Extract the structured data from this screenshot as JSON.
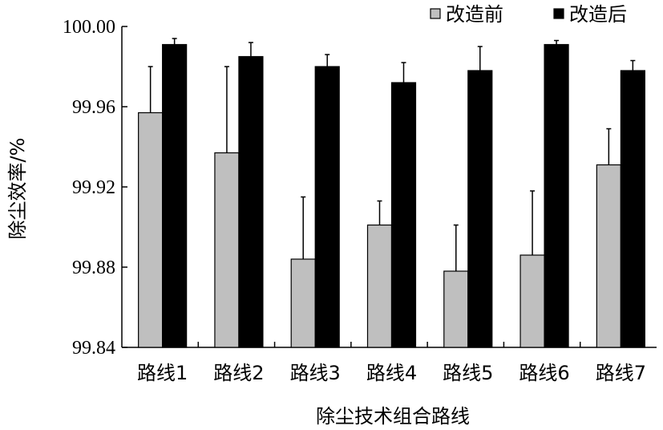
{
  "chart_data": {
    "type": "bar",
    "title": "",
    "xlabel": "除尘技术组合路线",
    "ylabel": "除尘效率/%",
    "ylim": [
      99.84,
      100.0
    ],
    "yticks": [
      "99.84",
      "99.88",
      "99.92",
      "99.96",
      "100.00"
    ],
    "yticks_values": [
      99.84,
      99.88,
      99.92,
      99.96,
      100.0
    ],
    "categories": [
      "路线1",
      "路线2",
      "路线3",
      "路线4",
      "路线5",
      "路线6",
      "路线7"
    ],
    "legend_position": "top-right",
    "grid": false,
    "series": [
      {
        "name": "改造前",
        "color": "#bfbfbf",
        "values": [
          99.957,
          99.937,
          99.884,
          99.901,
          99.878,
          99.886,
          99.931
        ],
        "error": [
          0.023,
          0.043,
          0.031,
          0.012,
          0.023,
          0.032,
          0.018
        ]
      },
      {
        "name": "改造后",
        "color": "#000000",
        "values": [
          99.991,
          99.985,
          99.98,
          99.972,
          99.978,
          99.991,
          99.978
        ],
        "error": [
          0.003,
          0.007,
          0.006,
          0.01,
          0.012,
          0.002,
          0.005
        ]
      }
    ]
  }
}
